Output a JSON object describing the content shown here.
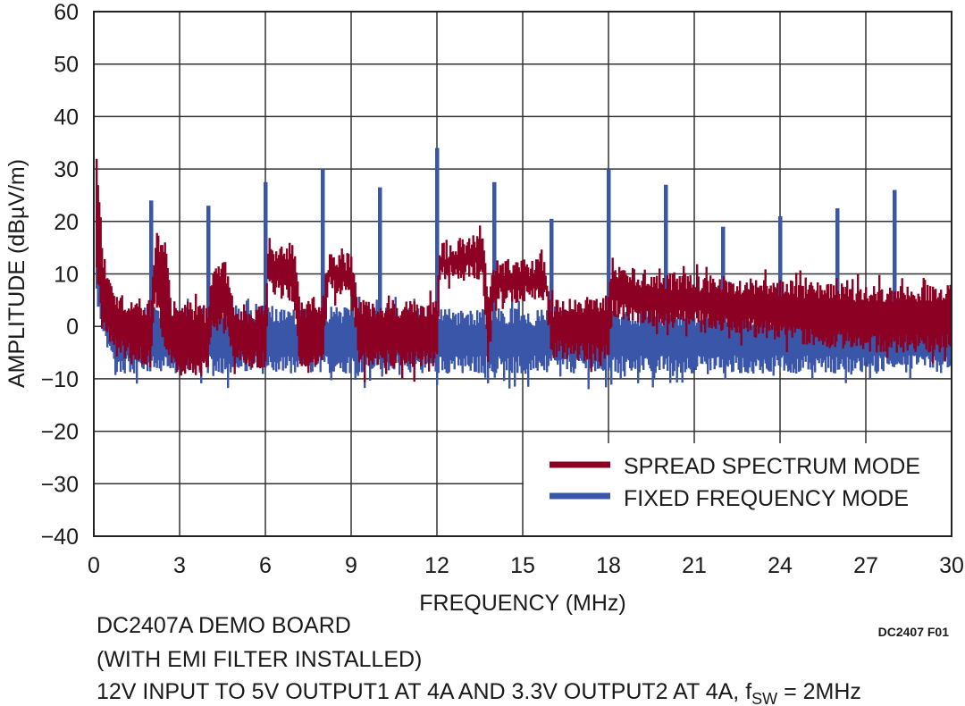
{
  "chart_data": {
    "type": "line",
    "xlabel": "FREQUENCY (MHz)",
    "ylabel": "AMPLITUDE (dBµV/m)",
    "xlim": [
      0,
      30
    ],
    "ylim": [
      -40,
      60
    ],
    "xticks": [
      "0",
      "3",
      "6",
      "9",
      "12",
      "15",
      "18",
      "21",
      "24",
      "27",
      "30"
    ],
    "yticks": [
      "60",
      "50",
      "40",
      "30",
      "20",
      "10",
      "0",
      "−10",
      "−20",
      "−30",
      "−40"
    ],
    "grid": true,
    "legend_position": "bottom-right",
    "series": [
      {
        "name": "FIXED FREQUENCY MODE",
        "color": "#3a56a8",
        "envelope": {
          "x": [
            0.1,
            0.3,
            0.6,
            1,
            30
          ],
          "upper": [
            15,
            8,
            4,
            4,
            3
          ],
          "lower": [
            5,
            -3,
            -7,
            -9,
            -9
          ]
        },
        "peaks": {
          "x": [
            2,
            4,
            6,
            8,
            10,
            12,
            14,
            16,
            18,
            20,
            22,
            24,
            26,
            28
          ],
          "y": [
            24,
            23,
            27.5,
            30,
            26.5,
            34,
            27.5,
            20.5,
            30,
            27,
            19,
            21,
            22.5,
            26
          ]
        }
      },
      {
        "name": "SPREAD SPECTRUM MODE",
        "color": "#8b0023",
        "envelope": {
          "x": [
            0.1,
            0.3,
            0.6,
            1,
            2,
            2.15,
            2.5,
            2.7,
            3,
            4,
            4.1,
            4.6,
            4.9,
            6,
            6.1,
            7,
            7.2,
            8,
            8.2,
            9,
            9.3,
            12,
            12.1,
            13.6,
            13.8,
            14,
            15.8,
            16,
            18,
            18.1,
            19,
            21,
            24,
            27,
            30
          ],
          "upper": [
            35,
            15,
            8,
            6,
            5,
            18,
            17,
            5,
            5,
            4,
            11,
            13,
            4,
            4,
            15,
            16,
            5,
            5,
            14,
            14,
            5,
            5,
            16,
            18,
            6,
            13,
            13,
            5,
            6,
            12,
            11,
            10,
            9,
            8,
            8
          ],
          "lower": [
            10,
            -2,
            -4,
            -6,
            -8,
            5,
            -6,
            -8,
            -10,
            -8,
            -2,
            0,
            -8,
            -8,
            6,
            4,
            -8,
            -8,
            6,
            5,
            -8,
            -8,
            8,
            9,
            -8,
            4,
            5,
            -6,
            -7,
            2,
            0,
            0,
            -3,
            -5,
            -5
          ]
        }
      }
    ]
  },
  "figure_id": "DC2407 F01",
  "notes": {
    "line1": "DC2407A DEMO BOARD",
    "line2": "(WITH EMI FILTER INSTALLED)",
    "line3_pre": "12V INPUT TO 5V OUTPUT1 AT 4A AND 3.3V OUTPUT2 AT 4A, f",
    "line3_sub": "SW",
    "line3_post": " = 2MHz"
  }
}
